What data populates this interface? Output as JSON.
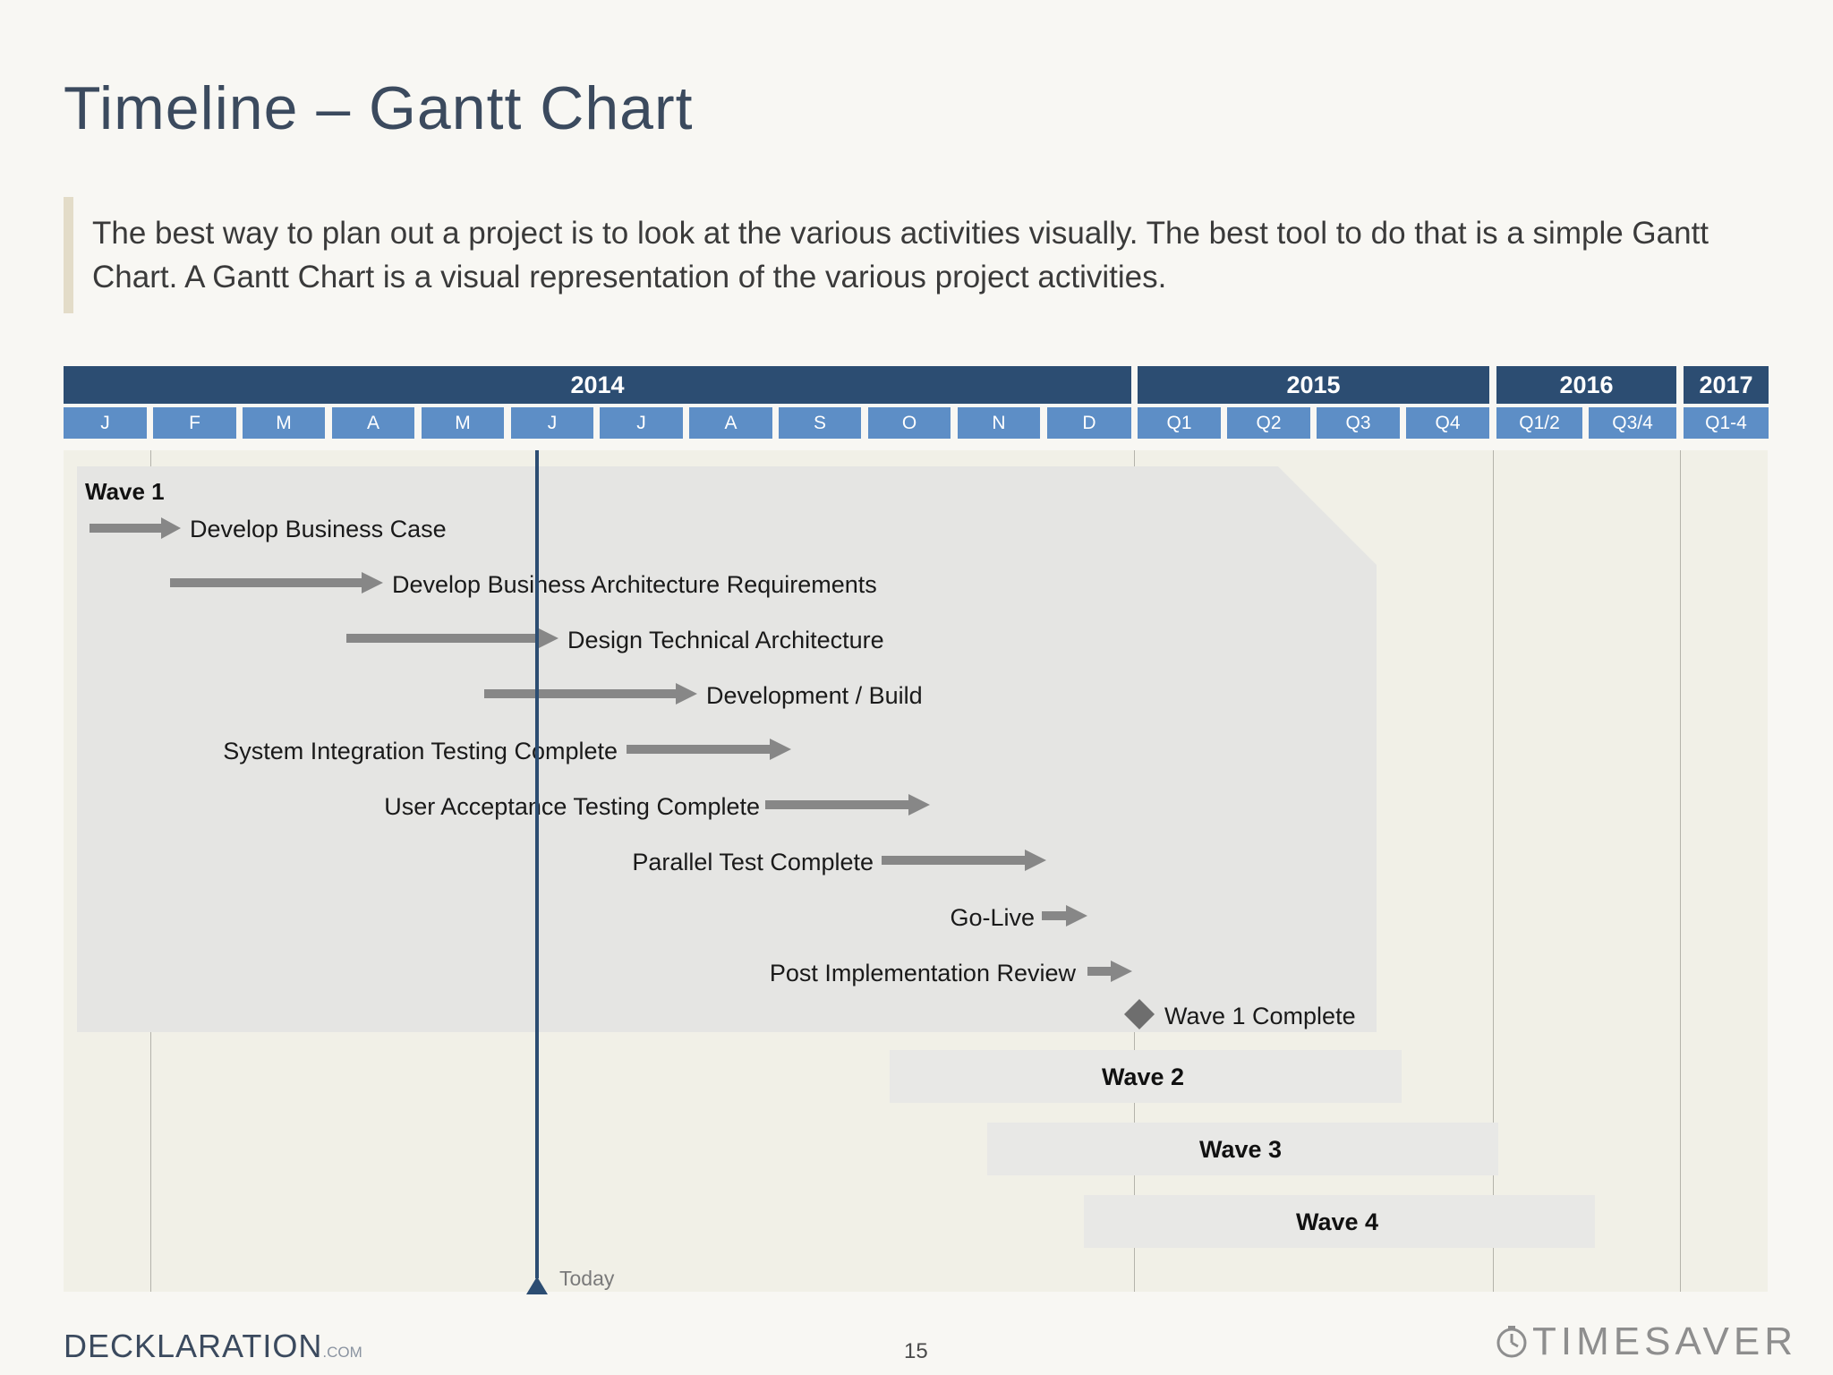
{
  "title": "Timeline – Gantt Chart",
  "intro": "The best way to plan out a project is to look at the various activities visually. The best tool to do that is a simple Gantt Chart. A Gantt Chart is a visual representation of the various project activities.",
  "colors": {
    "year_header": "#2c4d72",
    "period_header": "#5d8ec6",
    "task_arrow": "#878787",
    "milestone": "#6e6e6e",
    "today_line": "#2c4d72",
    "wave_panel": "#e5e5e3"
  },
  "timeline": {
    "years": [
      {
        "label": "2014"
      },
      {
        "label": "2015"
      },
      {
        "label": "2016"
      },
      {
        "label": "2017"
      }
    ],
    "periods": [
      {
        "label": "J"
      },
      {
        "label": "F"
      },
      {
        "label": "M"
      },
      {
        "label": "A"
      },
      {
        "label": "M"
      },
      {
        "label": "J"
      },
      {
        "label": "J"
      },
      {
        "label": "A"
      },
      {
        "label": "S"
      },
      {
        "label": "O"
      },
      {
        "label": "N"
      },
      {
        "label": "D"
      },
      {
        "label": "Q1"
      },
      {
        "label": "Q2"
      },
      {
        "label": "Q3"
      },
      {
        "label": "Q4"
      },
      {
        "label": "Q1/2"
      },
      {
        "label": "Q3/4"
      },
      {
        "label": "Q1-4"
      }
    ]
  },
  "today_label": "Today",
  "wave1_label": "Wave 1",
  "tasks": [
    {
      "label": "Develop Business Case"
    },
    {
      "label": "Develop Business Architecture Requirements"
    },
    {
      "label": "Design Technical Architecture"
    },
    {
      "label": "Development / Build"
    },
    {
      "label": "System Integration Testing Complete"
    },
    {
      "label": "User Acceptance Testing Complete"
    },
    {
      "label": "Parallel Test Complete"
    },
    {
      "label": "Go-Live"
    },
    {
      "label": "Post Implementation Review"
    }
  ],
  "milestone": {
    "label": "Wave 1 Complete"
  },
  "waves": [
    {
      "label": "Wave 2"
    },
    {
      "label": "Wave 3"
    },
    {
      "label": "Wave 4"
    }
  ],
  "footer": {
    "logo": "DECKLARATION",
    "logo_suffix": ".COM",
    "page_number": "15",
    "brand": "TIMESAVER"
  }
}
